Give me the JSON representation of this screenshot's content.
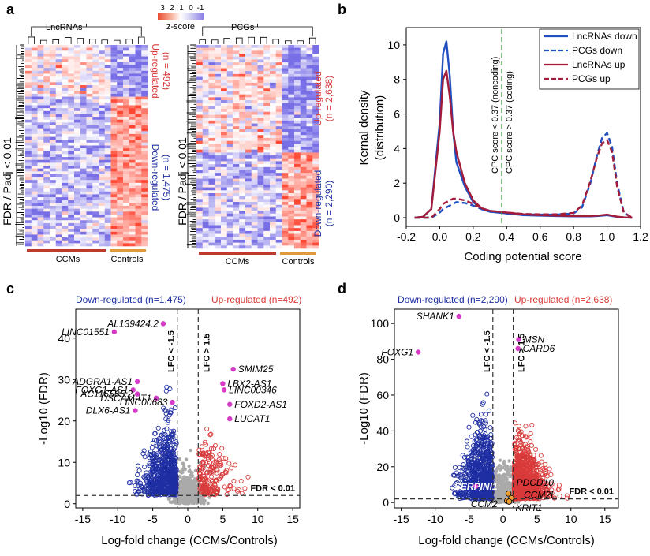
{
  "panels": {
    "a": "a",
    "b": "b",
    "c": "c",
    "d": "d"
  },
  "colorkey": {
    "ticks": [
      "3",
      "2",
      "1",
      "0",
      "-1"
    ],
    "label": "z-score",
    "colors": [
      "#e8492f",
      "#f6a087",
      "#ffffff",
      "#c9c7f1",
      "#8b7ee6"
    ]
  },
  "heatmap_lnc": {
    "title": "LncRNAs",
    "ylabel": "FDR / Padj < 0.01",
    "up_label": "Up-regulated",
    "up_n": "(n = 492)",
    "down_label": "Down-regulated",
    "down_n": "(n = 1,475)",
    "group1": "CCMs",
    "group2": "Controls"
  },
  "heatmap_pcg": {
    "title": "PCGs",
    "ylabel": "FDR / Padj < 0.01",
    "up_label": "Up-regulated",
    "up_n": "(n = 2,638)",
    "down_label": "Down-regulated",
    "down_n": "(n = 2,290)",
    "group1": "CCMs",
    "group2": "Controls"
  },
  "colors": {
    "up": "#d93a3a",
    "down": "#1f2fa3",
    "nonsig": "#aaaaaa",
    "control_bar": "#e09a3c",
    "ccm_bar": "#c0392b",
    "density_blue": "#1f4fc1",
    "density_red": "#a31c3c",
    "threshold_green": "#3fa34d",
    "highlight": "#d63bc7",
    "orange_pt": "#f0a030"
  },
  "chart_data": [
    {
      "type": "line",
      "panel": "b",
      "xlabel": "Coding potential score",
      "ylabel_line1": "Kernal density",
      "ylabel_line2": "(distribution)",
      "xlim": [
        -0.2,
        1.2
      ],
      "ylim": [
        -0.5,
        11
      ],
      "xticks": [
        "-0.2",
        "0.0",
        "0.2",
        "0.4",
        "0.6",
        "0.8",
        "1.0",
        "1.2"
      ],
      "xtick_values": [
        -0.2,
        0,
        0.2,
        0.4,
        0.6,
        0.8,
        1.0,
        1.2
      ],
      "yticks": [
        "0",
        "2",
        "4",
        "6",
        "8",
        "10"
      ],
      "ytick_values": [
        0,
        2,
        4,
        6,
        8,
        10
      ],
      "threshold": 0.37,
      "threshold_label_left": "CPC score < 0.37 (noncoding)",
      "threshold_label_right": "CPC score > 0.37 (coding)",
      "legend_position": "top-right",
      "x": [
        -0.15,
        -0.1,
        -0.05,
        0,
        0.02,
        0.04,
        0.06,
        0.08,
        0.1,
        0.15,
        0.2,
        0.25,
        0.3,
        0.4,
        0.5,
        0.6,
        0.7,
        0.8,
        0.85,
        0.9,
        0.94,
        0.97,
        1.0,
        1.03,
        1.06,
        1.1,
        1.15
      ],
      "series": [
        {
          "name": "LncRNAs down",
          "style": "solid",
          "color": "#1f4fc1",
          "values": [
            0,
            0.05,
            0.5,
            5.5,
            9.5,
            10.2,
            8.2,
            5.0,
            3.2,
            1.8,
            0.9,
            0.5,
            0.35,
            0.25,
            0.15,
            0.12,
            0.1,
            0.08,
            0.08,
            0.08,
            0.1,
            0.12,
            0.15,
            0.1,
            0.05,
            0.02,
            0
          ]
        },
        {
          "name": "PCGs down",
          "style": "dashed",
          "color": "#1f4fc1",
          "values": [
            0,
            0,
            0,
            0.3,
            0.5,
            0.6,
            0.7,
            0.8,
            0.9,
            0.85,
            0.7,
            0.5,
            0.35,
            0.25,
            0.2,
            0.18,
            0.18,
            0.25,
            0.6,
            2.0,
            3.6,
            4.6,
            4.9,
            4.1,
            2.0,
            0.3,
            0
          ]
        },
        {
          "name": "LncRNAs up",
          "style": "solid",
          "color": "#a31c3c",
          "values": [
            0,
            0.05,
            0.5,
            5.0,
            8.0,
            8.5,
            7.0,
            5.0,
            3.8,
            2.0,
            1.0,
            0.55,
            0.4,
            0.3,
            0.2,
            0.15,
            0.12,
            0.1,
            0.1,
            0.1,
            0.12,
            0.15,
            0.18,
            0.12,
            0.06,
            0.02,
            0
          ]
        },
        {
          "name": "PCGs up",
          "style": "dashed",
          "color": "#a31c3c",
          "values": [
            0,
            0,
            0,
            0.5,
            0.8,
            0.9,
            1.0,
            1.1,
            1.1,
            1.0,
            0.8,
            0.55,
            0.4,
            0.3,
            0.22,
            0.2,
            0.2,
            0.28,
            0.7,
            2.1,
            3.5,
            4.3,
            4.5,
            3.8,
            1.8,
            0.3,
            0
          ]
        }
      ]
    },
    {
      "type": "scatter",
      "panel": "c",
      "xlabel": "Log-fold change (CCMs/Controls)",
      "ylabel": "-Log10 (FDR)",
      "xlim": [
        -16,
        16
      ],
      "ylim": [
        -1,
        47
      ],
      "xticks": [
        "-15",
        "-10",
        "-5",
        "0",
        "5",
        "10",
        "15"
      ],
      "xtick_values": [
        -15,
        -10,
        -5,
        0,
        5,
        10,
        15
      ],
      "yticks": [
        "0",
        "10",
        "20",
        "30",
        "40"
      ],
      "ytick_values": [
        0,
        10,
        20,
        30,
        40
      ],
      "down_label": "Down-regulated (n=1,475)",
      "up_label": "Up-regulated (n=492)",
      "lfc_neg_label": "LFC < -1.5",
      "lfc_pos_label": "LFC > 1.5",
      "fdr_label": "FDR < 0.01",
      "lfc_threshold": 1.5,
      "fdr_line": 2,
      "labeled_points": [
        {
          "label": "AL139424.2",
          "x": -3.5,
          "y": 43.5
        },
        {
          "label": "LINC01551",
          "x": -10.5,
          "y": 41.5
        },
        {
          "label": "ADGRA1-AS1",
          "x": -7.2,
          "y": 29.5
        },
        {
          "label": "FOXG1-AS1",
          "x": -7.8,
          "y": 27.5
        },
        {
          "label": "AC116565.2",
          "x": -7.2,
          "y": 26.5
        },
        {
          "label": "DSCAM-IT1",
          "x": -4.5,
          "y": 25.5
        },
        {
          "label": "DLX6-AS1",
          "x": -7.5,
          "y": 22.5
        },
        {
          "label": "LINC00683",
          "x": -2.2,
          "y": 24.5
        },
        {
          "label": "SMIM25",
          "x": 6.5,
          "y": 32.5
        },
        {
          "label": "LBX2-AS1",
          "x": 5.0,
          "y": 29.0
        },
        {
          "label": "LINC00346",
          "x": 5.2,
          "y": 27.5
        },
        {
          "label": "FOXD2-AS1",
          "x": 6.0,
          "y": 24.0
        },
        {
          "label": "LUCAT1",
          "x": 6.0,
          "y": 20.5
        }
      ]
    },
    {
      "type": "scatter",
      "panel": "d",
      "xlabel": "Log-fold change (CCMs/Controls)",
      "ylabel": "-Log10 (FDR)",
      "xlim": [
        -16,
        17
      ],
      "ylim": [
        -3,
        108
      ],
      "xticks": [
        "-15",
        "-10",
        "-5",
        "0",
        "5",
        "10",
        "15"
      ],
      "xtick_values": [
        -15,
        -10,
        -5,
        0,
        5,
        10,
        15
      ],
      "yticks": [
        "0",
        "20",
        "40",
        "60",
        "80",
        "100"
      ],
      "ytick_values": [
        0,
        20,
        40,
        60,
        80,
        100
      ],
      "down_label": "Down-regulated (n=2,290)",
      "up_label": "Up-regulated (n=2,638)",
      "lfc_neg_label": "LFC < -1.5",
      "lfc_pos_label": "LFC > 1.5",
      "fdr_label": "FDR < 0.01",
      "lfc_threshold": 1.5,
      "fdr_line": 2,
      "labeled_points": [
        {
          "label": "SHANK1",
          "x": -6.5,
          "y": 104
        },
        {
          "label": "FOXG1",
          "x": -12.5,
          "y": 84
        },
        {
          "label": "MSN",
          "x": 2.3,
          "y": 91
        },
        {
          "label": "CARD6",
          "x": 2.2,
          "y": 86
        },
        {
          "label": "SERPINI1",
          "x": -4,
          "y": 9
        }
      ],
      "highlight_points": [
        {
          "label": "PDCD10",
          "x": 0.8,
          "y": 5
        },
        {
          "label": "CCM2L",
          "x": 1.2,
          "y": 2.5
        },
        {
          "label": "CCM2",
          "x": 0.6,
          "y": 1
        },
        {
          "label": "KRIT1",
          "x": 0.9,
          "y": 0.5
        }
      ]
    }
  ]
}
